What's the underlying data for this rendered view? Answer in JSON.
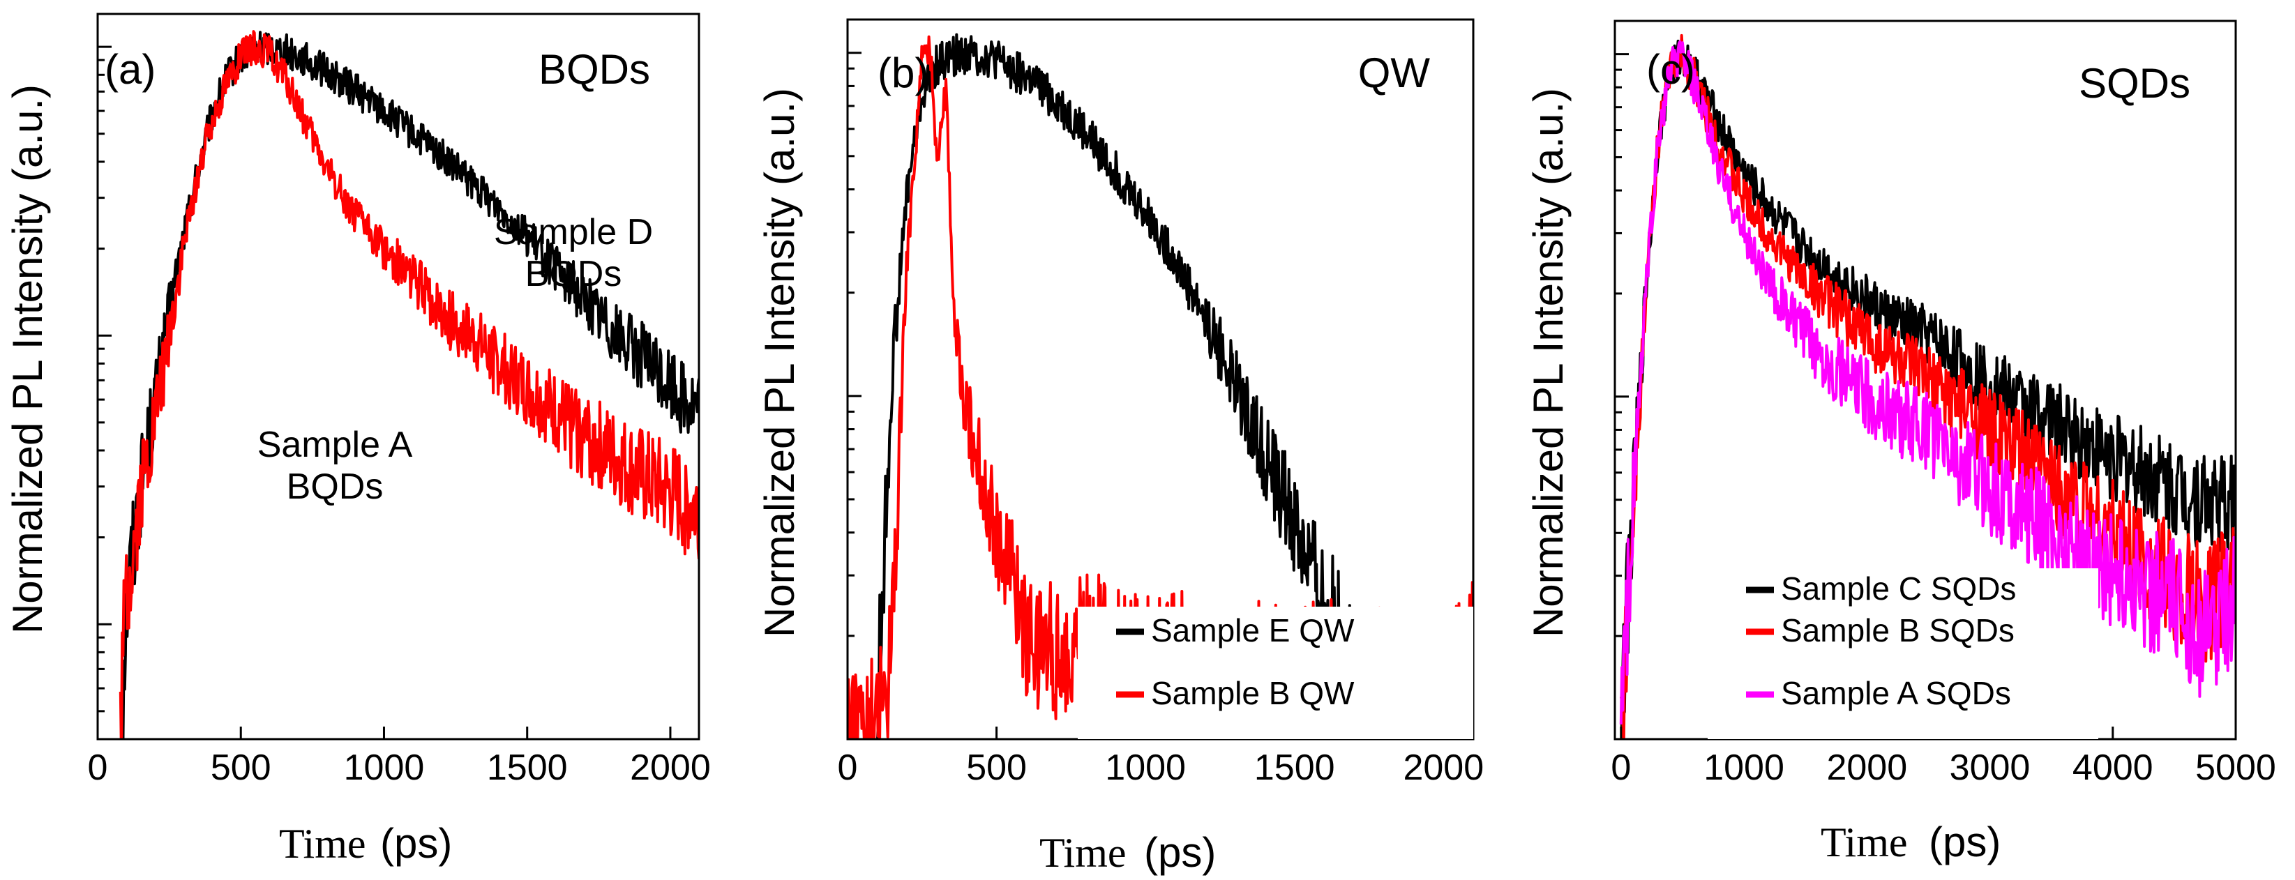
{
  "chart_data": [
    {
      "type": "line",
      "panel_label": "(a)",
      "title": "BQDs",
      "xlabel": "Time",
      "xunit": "(ps)",
      "ylabel": "Normalized PL Intensity (a.u.)",
      "xlim": [
        0,
        2100
      ],
      "yscale": "log",
      "ylim": [
        0.004,
        1.3
      ],
      "xticks": [
        "0",
        "500",
        "1000",
        "1500",
        "2000"
      ],
      "annotations": [
        {
          "lines": [
            "Sample D",
            "BQDs"
          ]
        },
        {
          "lines": [
            "Sample A",
            "BQDs"
          ]
        }
      ],
      "series": [
        {
          "color": "#000000",
          "x": [
            80,
            100,
            150,
            200,
            250,
            300,
            350,
            400,
            450,
            500,
            550,
            600,
            650,
            700,
            800,
            900,
            1000,
            1100,
            1200,
            1300,
            1400,
            1500,
            1600,
            1700,
            1800,
            1900,
            2000,
            2100
          ],
          "y": [
            0.004,
            0.012,
            0.03,
            0.06,
            0.12,
            0.22,
            0.38,
            0.58,
            0.78,
            0.92,
            0.99,
            1.0,
            0.98,
            0.93,
            0.82,
            0.71,
            0.6,
            0.5,
            0.42,
            0.34,
            0.28,
            0.22,
            0.17,
            0.135,
            0.105,
            0.085,
            0.068,
            0.055
          ]
        },
        {
          "color": "#ff0000",
          "x": [
            80,
            100,
            150,
            200,
            250,
            300,
            350,
            400,
            450,
            500,
            550,
            600,
            650,
            700,
            750,
            800,
            900,
            1000,
            1100,
            1200,
            1300,
            1400,
            1500,
            1600,
            1700,
            1800,
            1900,
            2000,
            2100
          ],
          "y": [
            0.005,
            0.012,
            0.028,
            0.05,
            0.1,
            0.2,
            0.36,
            0.56,
            0.76,
            0.92,
            1.0,
            0.95,
            0.8,
            0.62,
            0.48,
            0.38,
            0.26,
            0.2,
            0.16,
            0.12,
            0.1,
            0.08,
            0.065,
            0.054,
            0.045,
            0.038,
            0.032,
            0.028,
            0.025
          ]
        }
      ]
    },
    {
      "type": "line",
      "panel_label": "(b)",
      "title": "QW",
      "xlabel": "Time",
      "xunit": "(ps)",
      "ylabel": "Normalized PL Intensity (a.u.)",
      "xlim": [
        0,
        2100
      ],
      "yscale": "log",
      "ylim": [
        0.01,
        1.25
      ],
      "xticks": [
        "0",
        "500",
        "1000",
        "1500",
        "2000"
      ],
      "legend": {
        "position": "bottom-right"
      },
      "series": [
        {
          "name": "Sample E  QW",
          "color": "#000000",
          "x": [
            100,
            120,
            150,
            200,
            250,
            300,
            350,
            400,
            500,
            600,
            700,
            800,
            900,
            1000,
            1100,
            1200,
            1300,
            1400,
            1500,
            1600,
            1700,
            1750,
            1800,
            1900,
            2000
          ],
          "y": [
            0.012,
            0.03,
            0.12,
            0.4,
            0.75,
            0.92,
            0.98,
            1.0,
            0.95,
            0.85,
            0.72,
            0.58,
            0.45,
            0.34,
            0.25,
            0.17,
            0.11,
            0.068,
            0.042,
            0.025,
            0.016,
            0.013,
            0.011,
            0.01,
            0.012
          ]
        },
        {
          "name": "Sample B QW",
          "color": "#ff0000",
          "x": [
            0,
            100,
            150,
            200,
            250,
            280,
            300,
            330,
            360,
            400,
            450,
            500,
            550,
            600,
            700,
            800,
            900,
            1000,
            1100,
            1200,
            1300,
            1400,
            1500,
            1600,
            1700,
            1800,
            1900,
            2000,
            2100
          ],
          "y": [
            0.01,
            0.01,
            0.02,
            0.25,
            0.95,
            1.0,
            0.5,
            0.8,
            0.15,
            0.09,
            0.06,
            0.04,
            0.03,
            0.02,
            0.018,
            0.02,
            0.018,
            0.016,
            0.017,
            0.016,
            0.015,
            0.016,
            0.015,
            0.016,
            0.015,
            0.015,
            0.014,
            0.014,
            0.02
          ]
        }
      ]
    },
    {
      "type": "line",
      "panel_label": "(c)",
      "title": "SQDs",
      "xlabel": "Time",
      "xunit": "(ps)",
      "ylabel": "Normalized PL Intensity (a.u.)",
      "xlim": [
        -50,
        5000
      ],
      "yscale": "log",
      "ylim": [
        0.01,
        1.25
      ],
      "xticks": [
        "0",
        "1000",
        "2000",
        "3000",
        "4000",
        "5000"
      ],
      "legend": {
        "position": "bottom-left"
      },
      "series": [
        {
          "name": "Sample C SQDs",
          "color": "#000000",
          "x": [
            0,
            100,
            200,
            300,
            400,
            500,
            600,
            800,
            1000,
            1250,
            1500,
            1750,
            2000,
            2250,
            2500,
            2750,
            3000,
            3250,
            3500,
            3750,
            4000,
            4250,
            4500,
            4750,
            5000
          ],
          "y": [
            0.012,
            0.05,
            0.2,
            0.55,
            0.9,
            1.0,
            0.88,
            0.62,
            0.45,
            0.34,
            0.27,
            0.225,
            0.19,
            0.165,
            0.15,
            0.128,
            0.11,
            0.095,
            0.085,
            0.075,
            0.067,
            0.06,
            0.054,
            0.05,
            0.048
          ]
        },
        {
          "name": "Sample B SQDs",
          "color": "#ff0000",
          "x": [
            0,
            100,
            200,
            300,
            400,
            500,
            600,
            800,
            1000,
            1250,
            1500,
            1750,
            2000,
            2250,
            2500,
            2750,
            3000,
            3250,
            3500,
            3750,
            4000,
            4250,
            4500,
            4750,
            5000
          ],
          "y": [
            0.01,
            0.05,
            0.2,
            0.55,
            0.9,
            1.0,
            0.84,
            0.54,
            0.38,
            0.28,
            0.22,
            0.18,
            0.15,
            0.13,
            0.11,
            0.095,
            0.08,
            0.068,
            0.058,
            0.048,
            0.04,
            0.034,
            0.028,
            0.024,
            0.03
          ]
        },
        {
          "name": "Sample A SQDs",
          "color": "#ff00ff",
          "x": [
            0,
            100,
            200,
            300,
            400,
            500,
            600,
            800,
            1000,
            1250,
            1500,
            1750,
            2000,
            2250,
            2500,
            2750,
            3000,
            3250,
            3500,
            3750,
            4000,
            4250,
            4500,
            4750,
            5000
          ],
          "y": [
            0.011,
            0.05,
            0.2,
            0.55,
            0.9,
            1.0,
            0.8,
            0.46,
            0.3,
            0.2,
            0.15,
            0.12,
            0.1,
            0.088,
            0.079,
            0.065,
            0.055,
            0.047,
            0.04,
            0.035,
            0.031,
            0.028,
            0.025,
            0.02,
            0.026
          ]
        }
      ]
    }
  ]
}
